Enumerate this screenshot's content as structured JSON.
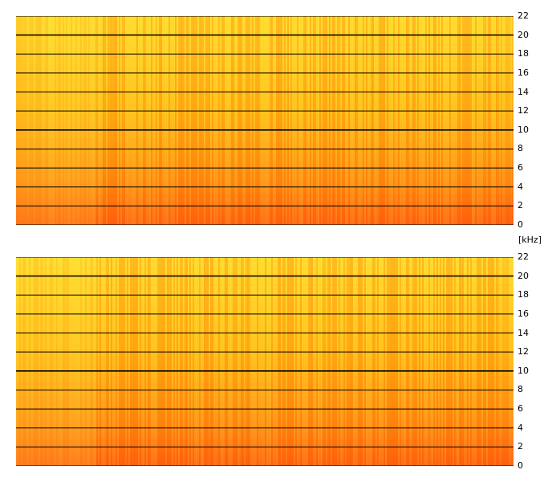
{
  "chart_data": [
    {
      "type": "heatmap",
      "title": "",
      "xlabel": "",
      "ylabel": "[kHz]",
      "ylim": [
        0,
        22
      ],
      "yticks": [
        "0",
        "2",
        "4",
        "6",
        "8",
        "10",
        "12",
        "14",
        "16",
        "18",
        "20",
        "22"
      ],
      "grid": true
    },
    {
      "type": "heatmap",
      "title": "",
      "xlabel": "",
      "ylabel": "[kHz]",
      "ylim": [
        0,
        22
      ],
      "yticks": [
        "0",
        "2",
        "4",
        "6",
        "8",
        "10",
        "12",
        "14",
        "16",
        "18",
        "20",
        "22"
      ],
      "grid": true
    }
  ],
  "colors": {
    "background": "#ffffff",
    "high_frequency": "#ffdb2d",
    "mid_frequency": "#ffbe18",
    "low_frequency": "#ff5a12",
    "gridline": "#000000"
  },
  "unit_label": "[kHz]"
}
